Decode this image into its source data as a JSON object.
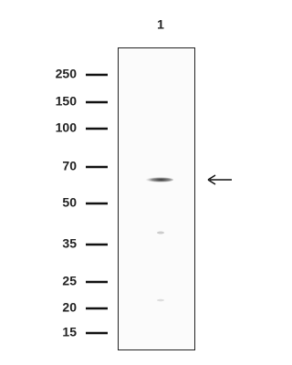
{
  "lane_labels": [
    "1"
  ],
  "markers": [
    250,
    150,
    100,
    70,
    50,
    35,
    25,
    20,
    15
  ]
}
